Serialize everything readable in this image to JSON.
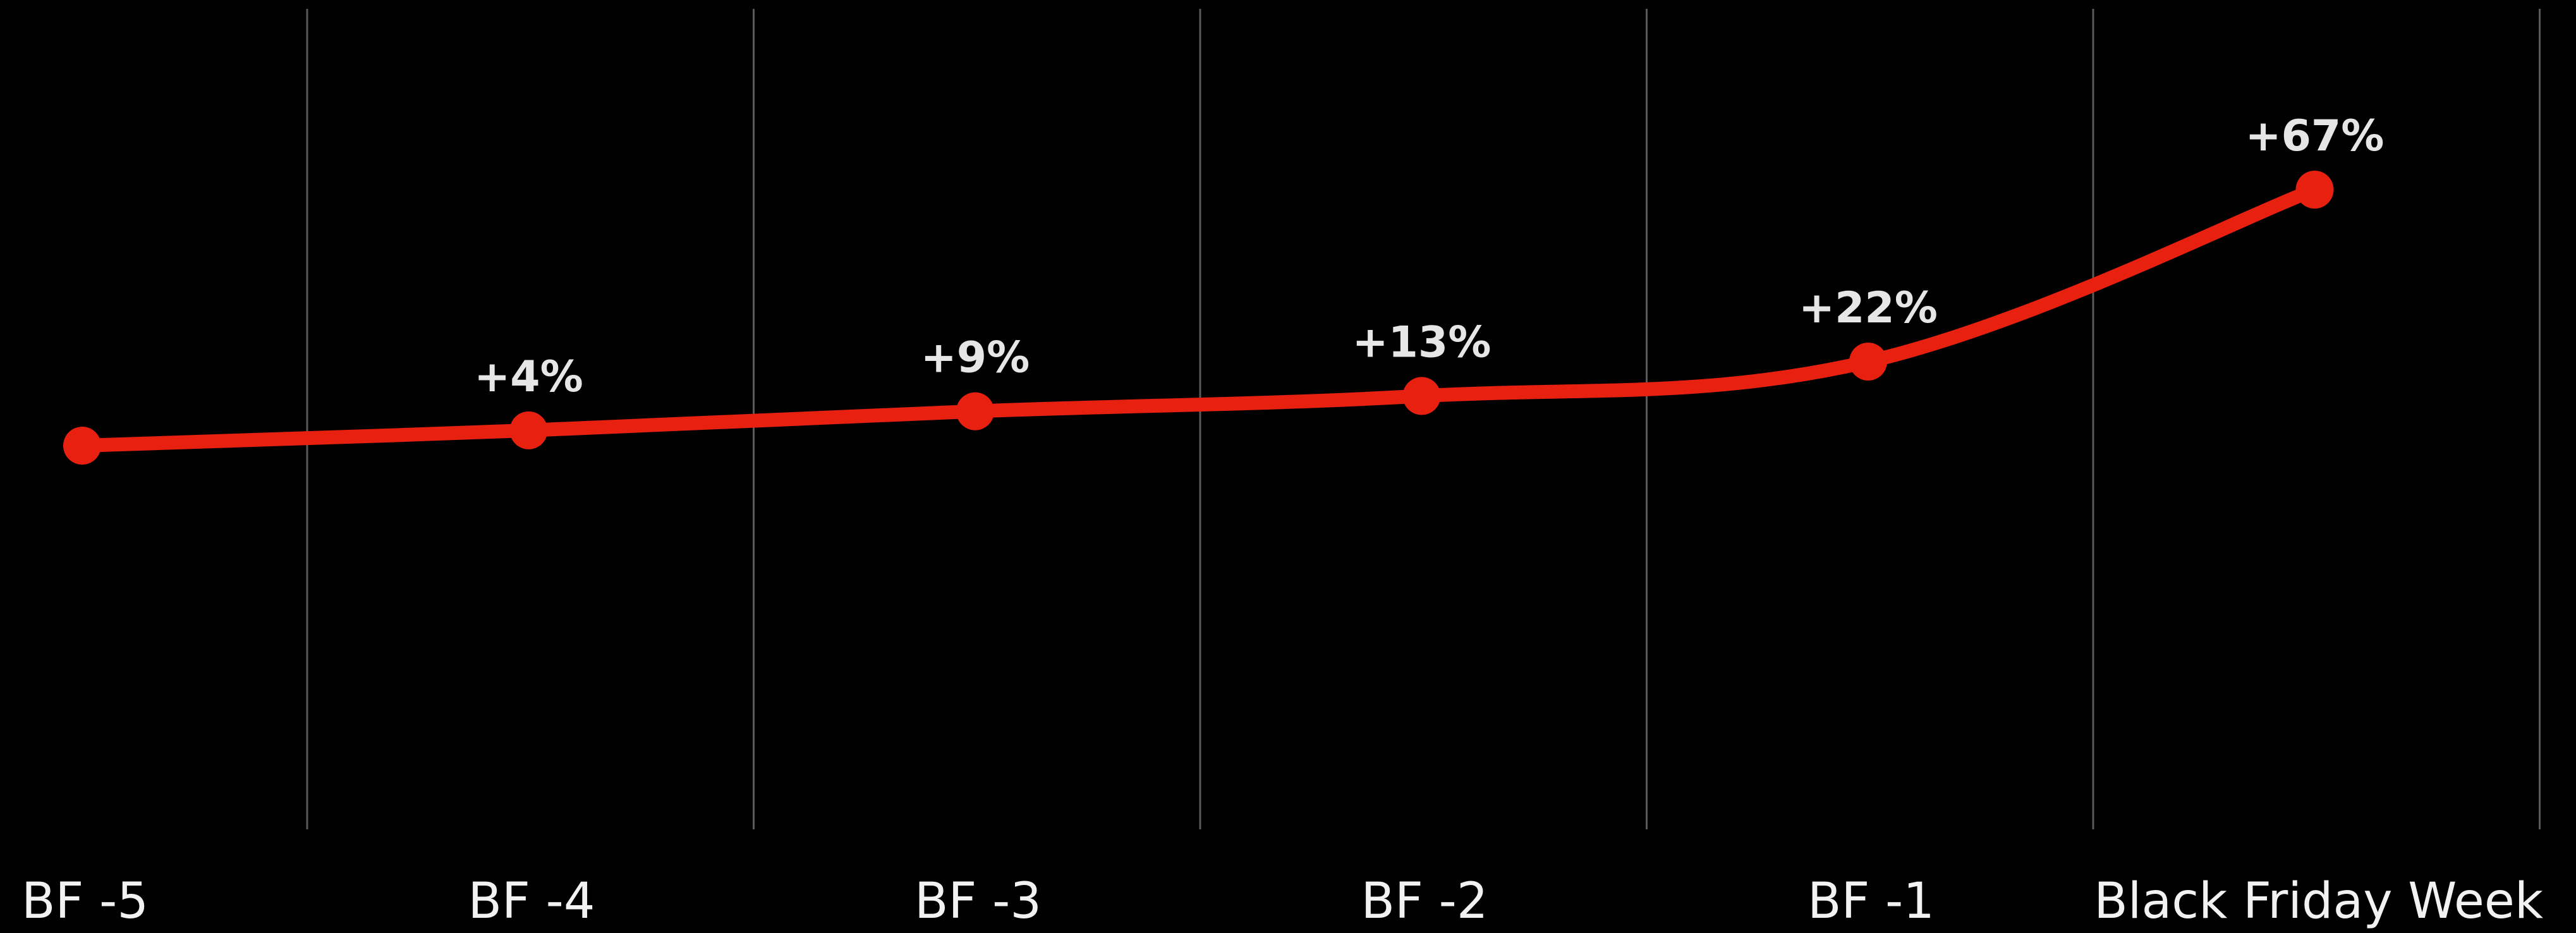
{
  "chart_data": {
    "type": "line",
    "categories": [
      "BF -5",
      "BF -4",
      "BF -3",
      "BF -2",
      "BF -1",
      "Black Friday Week"
    ],
    "series": [
      {
        "values": [
          0,
          4,
          9,
          13,
          22,
          67
        ],
        "labels": [
          "",
          "+4%",
          "+9%",
          "+13%",
          "+22%",
          "+67%"
        ]
      }
    ],
    "ylim": [
      -100,
      75
    ],
    "grid": "vertical",
    "legend": "none",
    "title": "",
    "xlabel": "",
    "ylabel": ""
  },
  "colors": {
    "background": "#000000",
    "line": "#e8200f",
    "marker": "#e8200f",
    "grid": "#5a5a5a",
    "tick_text": "#f2f2f2",
    "data_label_text": "#e6e6e6"
  }
}
